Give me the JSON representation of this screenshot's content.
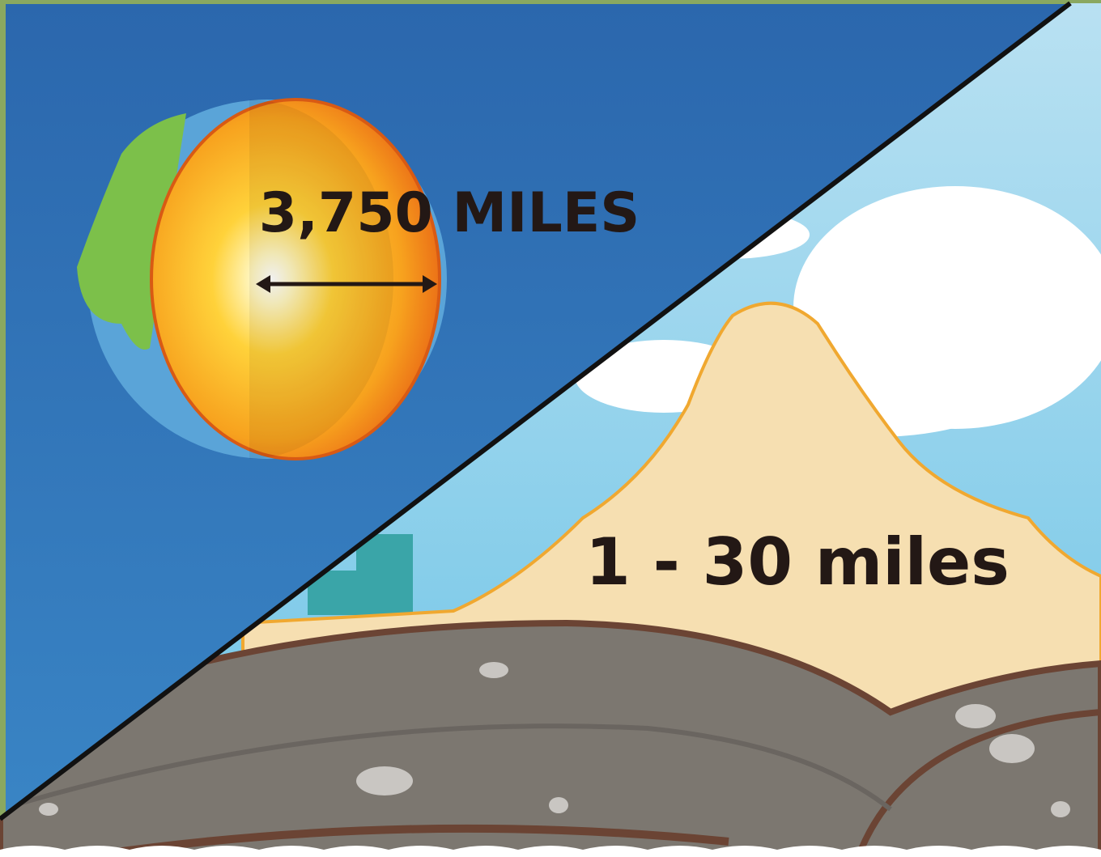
{
  "labels": {
    "core_width": "3,750 MILES",
    "crust_depth": "1 - 30 miles"
  }
}
